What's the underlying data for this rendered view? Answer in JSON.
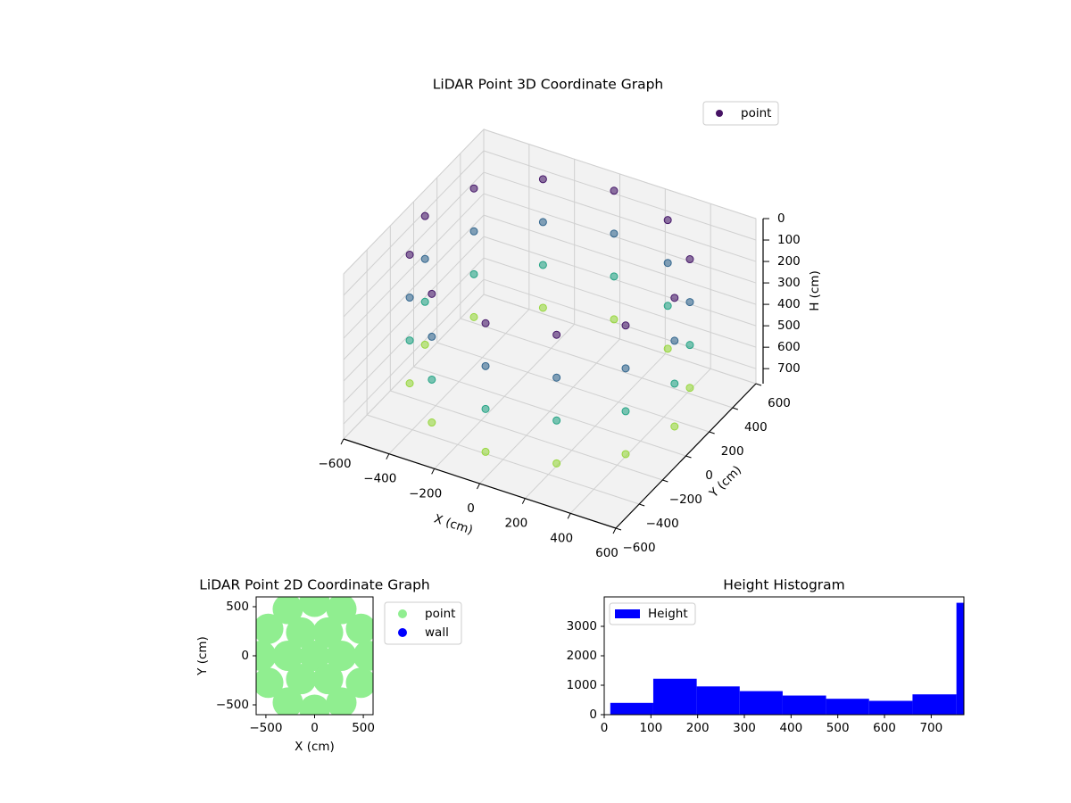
{
  "chart_data": [
    {
      "type": "scatter3d",
      "title": "LiDAR Point 3D Coordinate Graph",
      "xlabel": "X (cm)",
      "ylabel": "Y (cm)",
      "zlabel": "H (cm)",
      "xlim": [
        -600,
        600
      ],
      "ylim": [
        -600,
        600
      ],
      "zlim": [
        0,
        770
      ],
      "z_inverted": true,
      "grid": true,
      "legend": "upper right",
      "xticks": [
        {
          "value": -600,
          "label": "−600"
        },
        {
          "value": -400,
          "label": "−400"
        },
        {
          "value": -200,
          "label": "−200"
        },
        0,
        200,
        400,
        600
      ],
      "yticks": [
        {
          "value": -600,
          "label": "−600"
        },
        {
          "value": -400,
          "label": "−400"
        },
        {
          "value": -200,
          "label": "−200"
        },
        0,
        200,
        400,
        600
      ],
      "zticks": [
        0,
        100,
        200,
        300,
        400,
        500,
        600,
        700
      ],
      "series": [
        {
          "name": "point",
          "colormap": "viridis",
          "x": [
            550,
            476,
            275,
            0,
            -275,
            -476,
            -550,
            -476,
            -275,
            0,
            275,
            476,
            550,
            476,
            275,
            0,
            -275,
            -476,
            -550,
            -476,
            -275,
            0,
            275,
            476,
            550,
            476,
            275,
            0,
            -275,
            -476,
            -550,
            -476,
            -275,
            0,
            275,
            476,
            550,
            476,
            275,
            0,
            -275,
            -476,
            -550,
            -476,
            -275,
            0,
            275,
            476
          ],
          "y": [
            0,
            275,
            476,
            550,
            476,
            275,
            0,
            -275,
            -476,
            -550,
            -476,
            -275,
            0,
            275,
            476,
            550,
            476,
            275,
            0,
            -275,
            -476,
            -550,
            -476,
            -275,
            0,
            275,
            476,
            550,
            476,
            275,
            0,
            -275,
            -476,
            -550,
            -476,
            -275,
            0,
            275,
            476,
            550,
            476,
            275,
            0,
            -275,
            -476,
            -550,
            -476,
            -275
          ],
          "z": [
            50,
            50,
            50,
            50,
            50,
            50,
            50,
            50,
            50,
            50,
            50,
            50,
            250,
            250,
            250,
            250,
            250,
            250,
            250,
            250,
            250,
            250,
            250,
            250,
            450,
            450,
            450,
            450,
            450,
            450,
            450,
            450,
            450,
            450,
            450,
            450,
            650,
            650,
            650,
            650,
            650,
            650,
            650,
            650,
            650,
            650,
            650,
            650
          ]
        }
      ]
    },
    {
      "type": "scatter",
      "title": "LiDAR Point 2D Coordinate Graph",
      "xlabel": "X (cm)",
      "ylabel": "Y (cm)",
      "xlim": [
        -600,
        600
      ],
      "ylim": [
        -600,
        600
      ],
      "legend": "outside upper right",
      "xticks": [
        {
          "value": -500,
          "label": "−500"
        },
        0,
        500
      ],
      "yticks": [
        {
          "value": -500,
          "label": "−500"
        },
        0,
        500
      ],
      "series": [
        {
          "name": "point",
          "color": "#90ee90",
          "x": [
            0,
            275,
            138,
            -138,
            -275,
            -138,
            138,
            550,
            476,
            275,
            0,
            -275,
            -476,
            -550,
            -476,
            -275,
            0,
            275,
            476
          ],
          "y": [
            0,
            0,
            238,
            238,
            0,
            -238,
            -238,
            0,
            275,
            476,
            550,
            476,
            275,
            0,
            -275,
            -476,
            -550,
            -476,
            -275
          ]
        },
        {
          "name": "wall",
          "color": "#0000ff",
          "x": [],
          "y": []
        }
      ]
    },
    {
      "type": "histogram",
      "title": "Height Histogram",
      "legend": "upper left",
      "xlim": [
        0,
        770
      ],
      "ylim": [
        0,
        4000
      ],
      "xticks": [
        0,
        100,
        200,
        300,
        400,
        500,
        600,
        700
      ],
      "yticks": [
        0,
        1000,
        2000,
        3000
      ],
      "bins": [
        13,
        105,
        198,
        290,
        382,
        475,
        567,
        660,
        754,
        770
      ],
      "series": [
        {
          "name": "Height",
          "color": "#0000ff",
          "values": [
            400,
            1220,
            960,
            800,
            650,
            540,
            470,
            690,
            3800
          ]
        }
      ]
    }
  ]
}
